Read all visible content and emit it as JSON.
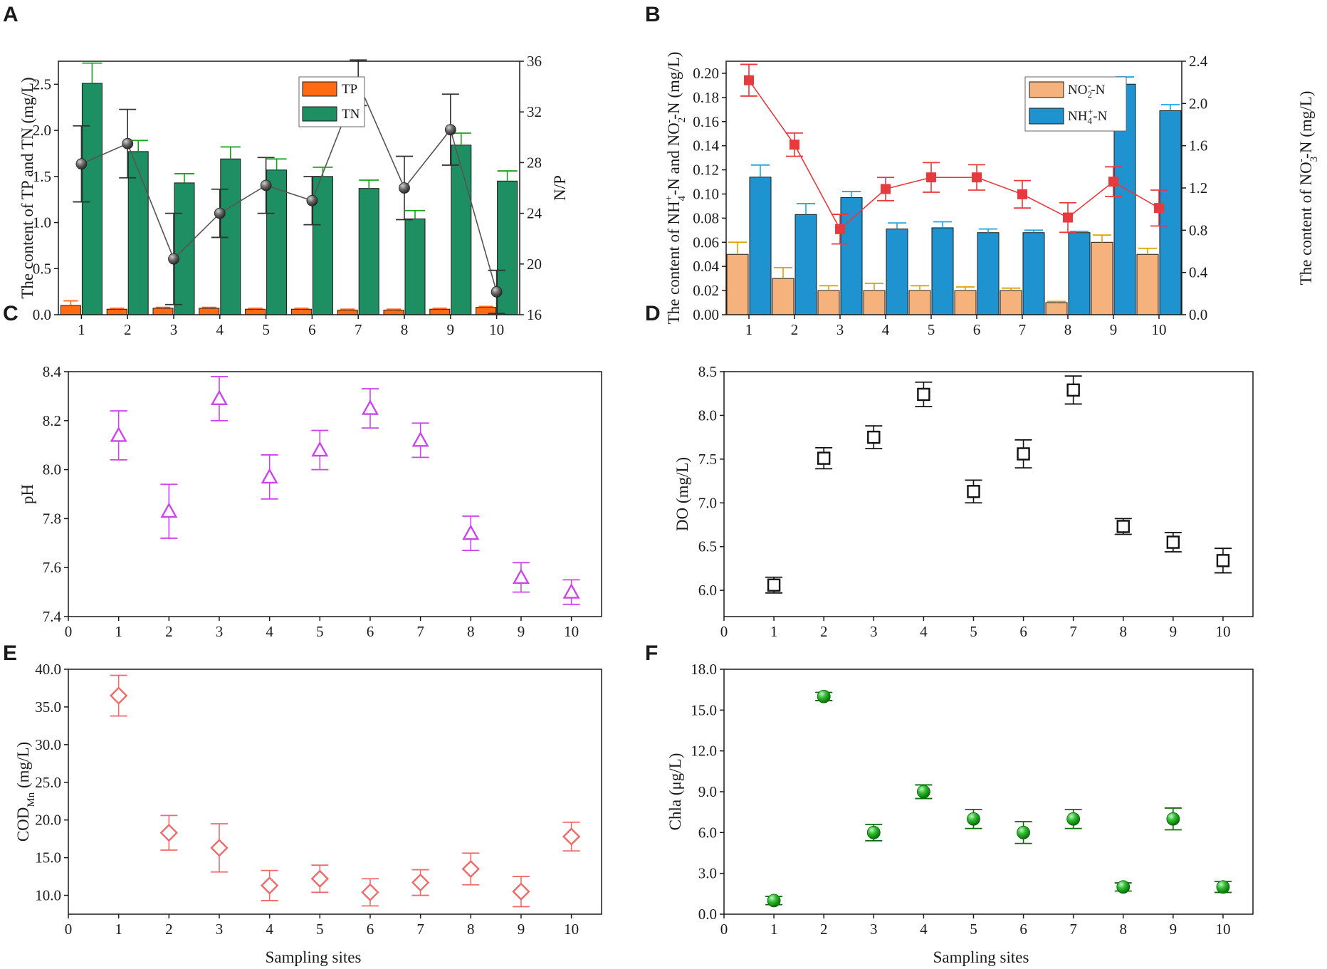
{
  "chart_data": [
    {
      "panel": "A",
      "type": "bar",
      "categories": [
        "1",
        "2",
        "3",
        "4",
        "5",
        "6",
        "7",
        "8",
        "9",
        "10"
      ],
      "series": [
        {
          "name": "TP",
          "axis": "left",
          "color": "#ff6a13",
          "values": [
            0.1,
            0.06,
            0.07,
            0.07,
            0.06,
            0.06,
            0.05,
            0.05,
            0.06,
            0.08
          ],
          "errors": [
            0.05,
            0.01,
            0.01,
            0.01,
            0.01,
            0.01,
            0.01,
            0.01,
            0.01,
            0.01
          ]
        },
        {
          "name": "TN",
          "axis": "left",
          "color": "#1e8f63",
          "values": [
            2.51,
            1.77,
            1.43,
            1.69,
            1.57,
            1.5,
            1.37,
            1.04,
            1.84,
            1.45
          ],
          "errors": [
            0.22,
            0.12,
            0.1,
            0.13,
            0.12,
            0.1,
            0.09,
            0.09,
            0.13,
            0.11
          ]
        },
        {
          "name": "N/P",
          "axis": "right",
          "type": "line",
          "color": "#555555",
          "values": [
            27.9,
            29.5,
            20.4,
            24.0,
            26.2,
            25.0,
            34.3,
            26.0,
            30.6,
            17.8
          ],
          "errors": [
            3.0,
            2.7,
            3.6,
            1.9,
            2.2,
            1.9,
            1.8,
            2.5,
            2.8,
            1.7
          ]
        }
      ],
      "ylabel": "The content of TP and TN (mg/L)",
      "ylim": [
        0,
        2.75
      ],
      "yticks": [
        "0.0",
        "0.5",
        "1.0",
        "1.5",
        "2.0",
        "2.5"
      ],
      "y2label": "N/P",
      "y2lim": [
        16,
        36
      ],
      "y2ticks": [
        "16",
        "20",
        "24",
        "28",
        "32",
        "36"
      ],
      "legend": "top-center"
    },
    {
      "panel": "B",
      "type": "bar",
      "categories": [
        "1",
        "2",
        "3",
        "4",
        "5",
        "6",
        "7",
        "8",
        "9",
        "10"
      ],
      "series": [
        {
          "name": "NO2-N",
          "axis": "left",
          "color": "#f6b27c",
          "errColor": "#e0a100",
          "values": [
            0.05,
            0.03,
            0.02,
            0.02,
            0.02,
            0.02,
            0.02,
            0.01,
            0.06,
            0.05
          ],
          "errors": [
            0.01,
            0.009,
            0.004,
            0.006,
            0.004,
            0.003,
            0.002,
            0.001,
            0.006,
            0.005
          ]
        },
        {
          "name": "NH4-N",
          "axis": "left",
          "color": "#1f93d0",
          "errColor": "#1aa7e6",
          "values": [
            0.114,
            0.083,
            0.097,
            0.071,
            0.072,
            0.068,
            0.068,
            0.068,
            0.191,
            0.169
          ],
          "errors": [
            0.01,
            0.009,
            0.005,
            0.005,
            0.005,
            0.003,
            0.002,
            0.001,
            0.006,
            0.005
          ]
        },
        {
          "name": "NO3-N",
          "axis": "right",
          "type": "line",
          "color": "#e8393c",
          "values": [
            2.22,
            1.61,
            0.81,
            1.19,
            1.3,
            1.3,
            1.14,
            0.92,
            1.26,
            1.01
          ],
          "errors": [
            0.15,
            0.11,
            0.14,
            0.11,
            0.14,
            0.12,
            0.13,
            0.14,
            0.14,
            0.17
          ]
        }
      ],
      "ylabel_parts": [
        "The content of NH",
        "4",
        "+",
        "-N and NO",
        "2",
        "-",
        "-N (mg/L)"
      ],
      "ylim": [
        0,
        0.21
      ],
      "yticks": [
        "0.00",
        "0.02",
        "0.04",
        "0.06",
        "0.08",
        "0.10",
        "0.12",
        "0.14",
        "0.16",
        "0.18",
        "0.20"
      ],
      "y2label_parts": [
        "The content of NO",
        "3",
        "-",
        "-N (mg/L)"
      ],
      "y2lim": [
        0,
        2.4
      ],
      "y2ticks": [
        "0.0",
        "0.4",
        "0.8",
        "1.2",
        "1.6",
        "2.0",
        "2.4"
      ],
      "legend_labels": [
        [
          "NO",
          "2",
          "-",
          "-N"
        ],
        [
          "NH",
          "4",
          "+",
          "-N"
        ]
      ],
      "legend": "top-right"
    },
    {
      "panel": "C",
      "type": "scatter",
      "marker": "triangle-open",
      "color": "#cc44ee",
      "x": [
        1,
        2,
        3,
        4,
        5,
        6,
        7,
        8,
        9,
        10
      ],
      "values": [
        8.14,
        7.83,
        8.29,
        7.97,
        8.08,
        8.25,
        8.12,
        7.74,
        7.56,
        7.5
      ],
      "errors": [
        0.1,
        0.11,
        0.09,
        0.09,
        0.08,
        0.08,
        0.07,
        0.07,
        0.06,
        0.05
      ],
      "ylabel": "pH",
      "xlim": [
        0,
        10.6
      ],
      "xticks": [
        "0",
        "1",
        "2",
        "3",
        "4",
        "5",
        "6",
        "7",
        "8",
        "9",
        "10"
      ],
      "ylim": [
        7.4,
        8.4
      ],
      "yticks": [
        "7.4",
        "7.6",
        "7.8",
        "8.0",
        "8.2",
        "8.4"
      ]
    },
    {
      "panel": "D",
      "type": "scatter",
      "marker": "square-open",
      "color": "#111111",
      "x": [
        1,
        2,
        3,
        4,
        5,
        6,
        7,
        8,
        9,
        10
      ],
      "values": [
        6.06,
        7.51,
        7.75,
        8.24,
        7.13,
        7.56,
        8.29,
        6.73,
        6.55,
        6.34
      ],
      "errors": [
        0.09,
        0.12,
        0.13,
        0.14,
        0.13,
        0.16,
        0.16,
        0.09,
        0.11,
        0.14
      ],
      "ylabel": "DO (mg/L)",
      "xlim": [
        0,
        10.6
      ],
      "xticks": [
        "0",
        "1",
        "2",
        "3",
        "4",
        "5",
        "6",
        "7",
        "8",
        "9",
        "10"
      ],
      "ylim": [
        5.7,
        8.5
      ],
      "yticks": [
        "6.0",
        "6.5",
        "7.0",
        "7.5",
        "8.0",
        "8.5"
      ]
    },
    {
      "panel": "E",
      "type": "scatter",
      "marker": "diamond-open",
      "color": "#ef6b6b",
      "x": [
        1,
        2,
        3,
        4,
        5,
        6,
        7,
        8,
        9,
        10
      ],
      "values": [
        36.5,
        18.3,
        16.3,
        11.3,
        12.2,
        10.4,
        11.7,
        13.5,
        10.5,
        17.8
      ],
      "errors": [
        2.7,
        2.3,
        3.2,
        2.0,
        1.8,
        1.8,
        1.7,
        2.1,
        2.0,
        1.9
      ],
      "xlabel": "Sampling sites",
      "ylabel_parts": [
        "COD",
        "Mn",
        " (mg/L)"
      ],
      "xlim": [
        0,
        10.6
      ],
      "xticks": [
        "0",
        "1",
        "2",
        "3",
        "4",
        "5",
        "6",
        "7",
        "8",
        "9",
        "10"
      ],
      "ylim": [
        7.5,
        40.0
      ],
      "yticks": [
        "10.0",
        "15.0",
        "20.0",
        "25.0",
        "30.0",
        "35.0",
        "40.0"
      ]
    },
    {
      "panel": "F",
      "type": "scatter",
      "marker": "sphere",
      "color": "#13a313",
      "x": [
        1,
        2,
        3,
        4,
        5,
        6,
        7,
        8,
        9,
        10
      ],
      "values": [
        1.0,
        16.0,
        6.0,
        9.0,
        7.0,
        6.0,
        7.0,
        2.0,
        7.0,
        2.0
      ],
      "errors": [
        0.3,
        0.3,
        0.6,
        0.5,
        0.7,
        0.8,
        0.7,
        0.3,
        0.8,
        0.4
      ],
      "xlabel": "Sampling sites",
      "ylabel": "Chla (μg/L)",
      "xlim": [
        0,
        10.6
      ],
      "xticks": [
        "0",
        "1",
        "2",
        "3",
        "4",
        "5",
        "6",
        "7",
        "8",
        "9",
        "10"
      ],
      "ylim": [
        0,
        18.0
      ],
      "yticks": [
        "0.0",
        "3.0",
        "6.0",
        "9.0",
        "12.0",
        "15.0",
        "18.0"
      ]
    }
  ]
}
